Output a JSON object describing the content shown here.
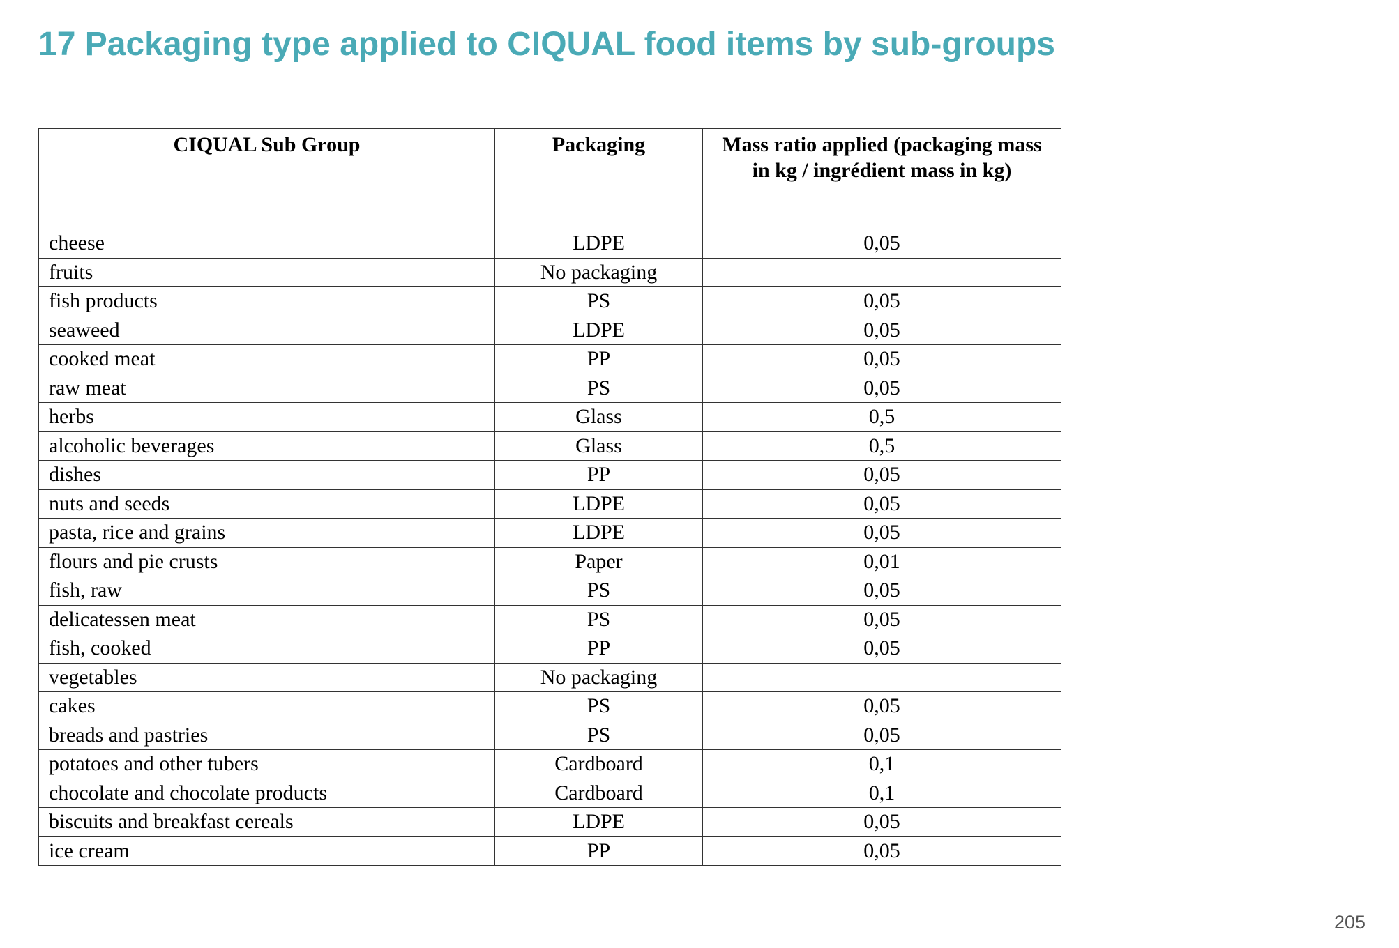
{
  "title": "17 Packaging type applied to CIQUAL food items by sub-groups",
  "table": {
    "headers": [
      "CIQUAL Sub Group",
      "Packaging",
      "Mass ratio applied (packaging mass in kg / ingrédient mass in kg)"
    ],
    "rows": [
      {
        "group": "cheese",
        "packaging": "LDPE",
        "ratio": "0,05"
      },
      {
        "group": "fruits",
        "packaging": "No packaging",
        "ratio": ""
      },
      {
        "group": "fish products",
        "packaging": "PS",
        "ratio": "0,05"
      },
      {
        "group": "seaweed",
        "packaging": "LDPE",
        "ratio": "0,05"
      },
      {
        "group": "cooked meat",
        "packaging": "PP",
        "ratio": "0,05"
      },
      {
        "group": "raw meat",
        "packaging": "PS",
        "ratio": "0,05"
      },
      {
        "group": "herbs",
        "packaging": "Glass",
        "ratio": "0,5"
      },
      {
        "group": "alcoholic beverages",
        "packaging": "Glass",
        "ratio": "0,5"
      },
      {
        "group": "dishes",
        "packaging": "PP",
        "ratio": "0,05"
      },
      {
        "group": "nuts and seeds",
        "packaging": "LDPE",
        "ratio": "0,05"
      },
      {
        "group": "pasta, rice and grains",
        "packaging": "LDPE",
        "ratio": "0,05"
      },
      {
        "group": "flours and pie crusts",
        "packaging": "Paper",
        "ratio": "0,01"
      },
      {
        "group": "fish, raw",
        "packaging": "PS",
        "ratio": "0,05"
      },
      {
        "group": "delicatessen meat",
        "packaging": "PS",
        "ratio": "0,05"
      },
      {
        "group": "fish, cooked",
        "packaging": "PP",
        "ratio": "0,05"
      },
      {
        "group": "vegetables",
        "packaging": "No packaging",
        "ratio": ""
      },
      {
        "group": "cakes",
        "packaging": "PS",
        "ratio": "0,05"
      },
      {
        "group": "breads and pastries",
        "packaging": "PS",
        "ratio": "0,05"
      },
      {
        "group": "potatoes and other tubers",
        "packaging": "Cardboard",
        "ratio": "0,1"
      },
      {
        "group": "chocolate and chocolate products",
        "packaging": "Cardboard",
        "ratio": "0,1"
      },
      {
        "group": "biscuits and breakfast cereals",
        "packaging": "LDPE",
        "ratio": "0,05"
      },
      {
        "group": "ice cream",
        "packaging": "PP",
        "ratio": "0,05"
      }
    ]
  },
  "page_number": "205",
  "colors": {
    "title": "#4aaab6",
    "border": "#333333",
    "text": "#000000"
  }
}
